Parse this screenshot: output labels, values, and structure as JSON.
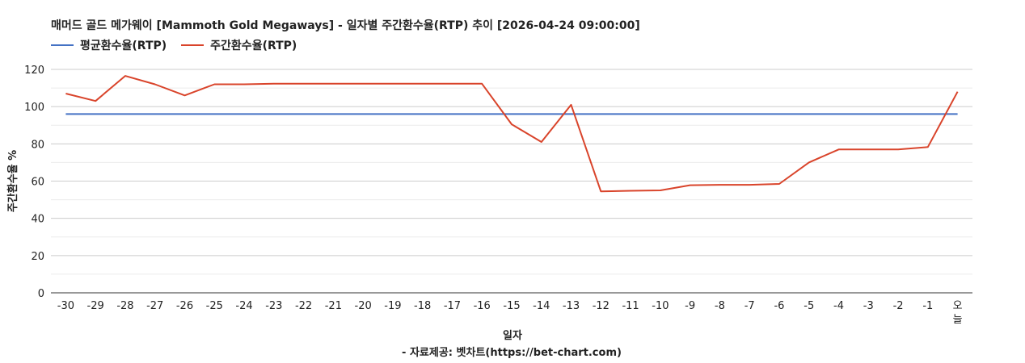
{
  "chart_data": {
    "type": "line",
    "title": "매머드 골드 메가웨이 [Mammoth Gold Megaways] - 일자별 주간환수율(RTP) 추이 [2026-04-24 09:00:00]",
    "xlabel": "일자",
    "ylabel": "주간환수율 %",
    "source": "- 자료제공: 벳차트(https://bet-chart.com)",
    "categories": [
      "-30",
      "-29",
      "-28",
      "-27",
      "-26",
      "-25",
      "-24",
      "-23",
      "-22",
      "-21",
      "-20",
      "-19",
      "-18",
      "-17",
      "-16",
      "-15",
      "-14",
      "-13",
      "-12",
      "-11",
      "-10",
      "-9",
      "-8",
      "-7",
      "-6",
      "-5",
      "-4",
      "-3",
      "-2",
      "-1",
      "오늘"
    ],
    "ylim": [
      0,
      120
    ],
    "yticks": [
      0,
      20,
      40,
      60,
      80,
      100,
      120
    ],
    "grid": true,
    "legend_position": "top-left",
    "series": [
      {
        "name": "평균환수율(RTP)",
        "color": "#4472c4",
        "values": [
          96,
          96,
          96,
          96,
          96,
          96,
          96,
          96,
          96,
          96,
          96,
          96,
          96,
          96,
          96,
          96,
          96,
          96,
          96,
          96,
          96,
          96,
          96,
          96,
          96,
          96,
          96,
          96,
          96,
          96,
          96
        ]
      },
      {
        "name": "주간환수율(RTP)",
        "color": "#d9442b",
        "values": [
          107,
          103,
          116.5,
          112,
          106,
          112,
          112,
          112.3,
          112.3,
          112.3,
          112.3,
          112.3,
          112.3,
          112.3,
          112.3,
          90.5,
          81,
          101,
          54.5,
          54.8,
          55,
          57.8,
          58,
          58,
          58.5,
          70,
          77,
          77,
          77,
          78.3,
          108
        ]
      }
    ]
  }
}
